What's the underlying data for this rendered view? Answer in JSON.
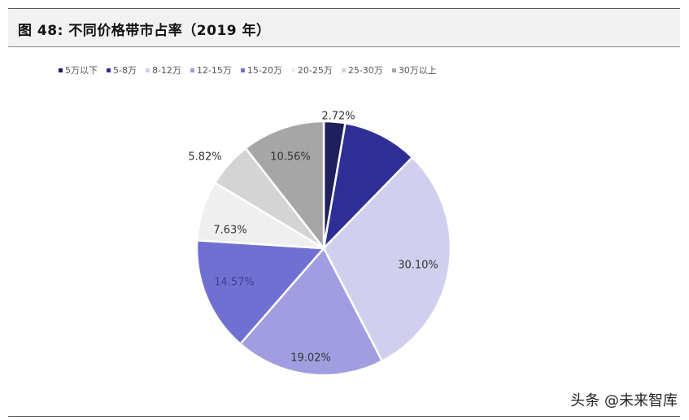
{
  "figure": {
    "title": "图 48:  不同价格带市占率（2019 年）"
  },
  "chart_data": {
    "type": "pie",
    "title": "",
    "legend_position": "top",
    "categories": [
      "5万以下",
      "5-8万",
      "8-12万",
      "12-15万",
      "15-20万",
      "20-25万",
      "25-30万",
      "30万以上"
    ],
    "values": [
      2.72,
      9.58,
      30.1,
      19.02,
      14.57,
      7.63,
      5.82,
      10.56
    ],
    "labels": [
      "2.72%",
      "9.58%",
      "30.10%",
      "19.02%",
      "14.57%",
      "7.63%",
      "5.82%",
      "10.56%"
    ],
    "colors": [
      "#1f1f5c",
      "#2e2e96",
      "#d0d0ee",
      "#a09ee0",
      "#7070d2",
      "#efefef",
      "#d4d4d4",
      "#a6a6a6"
    ],
    "label_colors": [
      "#333333",
      "#2e2e96",
      "#333333",
      "#333333",
      "#3d3d9c",
      "#333333",
      "#333333",
      "#333333"
    ]
  },
  "watermark": {
    "text": "头条 @未来智库"
  }
}
